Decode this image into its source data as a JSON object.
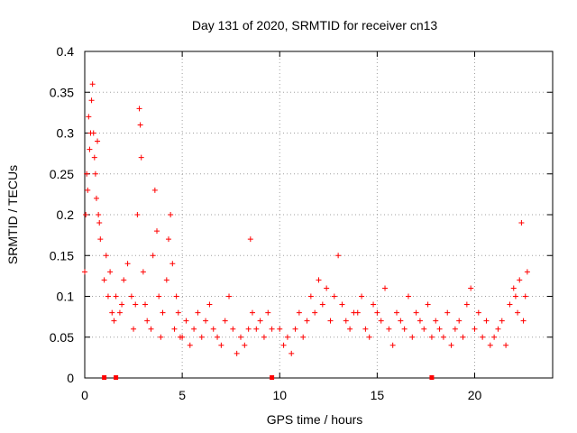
{
  "chart_data": {
    "type": "scatter",
    "title": "Day 131 of 2020, SRMTID for receiver cn13",
    "xlabel": "GPS time / hours",
    "ylabel": "SRMTID / TECUs",
    "xlim": [
      0,
      24
    ],
    "ylim": [
      0,
      0.4
    ],
    "xticks": [
      0,
      5,
      10,
      15,
      20
    ],
    "xtick_labels": [
      "0",
      "5",
      "10",
      "15",
      "20"
    ],
    "yticks": [
      0,
      0.05,
      0.1,
      0.15,
      0.2,
      0.25,
      0.3,
      0.35,
      0.4
    ],
    "ytick_labels": [
      "0",
      "0.05",
      "0.1",
      "0.15",
      "0.2",
      "0.25",
      "0.3",
      "0.35",
      "0.4"
    ],
    "grid": true,
    "marker": "+",
    "color": "#ff0000",
    "series": [
      {
        "name": "SRMTID",
        "x": [
          0.0,
          0.05,
          0.1,
          0.15,
          0.2,
          0.25,
          0.3,
          0.35,
          0.4,
          0.45,
          0.5,
          0.55,
          0.6,
          0.65,
          0.7,
          0.75,
          0.8,
          1.0,
          1.1,
          1.2,
          1.3,
          1.4,
          1.5,
          1.6,
          1.8,
          1.9,
          2.0,
          2.2,
          2.4,
          2.5,
          2.6,
          2.7,
          2.8,
          2.85,
          2.9,
          3.0,
          3.1,
          3.2,
          3.4,
          3.5,
          3.6,
          3.7,
          3.8,
          3.9,
          4.0,
          4.2,
          4.3,
          4.4,
          4.5,
          4.6,
          4.7,
          4.8,
          4.9,
          5.0,
          5.2,
          5.4,
          5.6,
          5.8,
          6.0,
          6.2,
          6.4,
          6.6,
          6.8,
          7.0,
          7.2,
          7.4,
          7.6,
          7.8,
          8.0,
          8.2,
          8.4,
          8.5,
          8.6,
          8.8,
          9.0,
          9.2,
          9.4,
          9.6,
          10.0,
          10.2,
          10.4,
          10.6,
          10.8,
          11.0,
          11.2,
          11.4,
          11.6,
          11.8,
          12.0,
          12.2,
          12.4,
          12.6,
          12.8,
          13.0,
          13.2,
          13.4,
          13.6,
          13.8,
          14.0,
          14.2,
          14.4,
          14.6,
          14.8,
          15.0,
          15.2,
          15.4,
          15.6,
          15.8,
          16.0,
          16.2,
          16.4,
          16.6,
          16.8,
          17.0,
          17.2,
          17.4,
          17.6,
          17.8,
          18.0,
          18.2,
          18.4,
          18.6,
          18.8,
          19.0,
          19.2,
          19.4,
          19.6,
          19.8,
          20.0,
          20.2,
          20.4,
          20.6,
          20.8,
          21.0,
          21.2,
          21.4,
          21.6,
          21.8,
          22.0,
          22.1,
          22.2,
          22.3,
          22.4,
          22.5,
          22.6,
          22.7
        ],
        "y": [
          0.13,
          0.2,
          0.25,
          0.23,
          0.32,
          0.28,
          0.3,
          0.34,
          0.36,
          0.3,
          0.27,
          0.25,
          0.22,
          0.29,
          0.2,
          0.19,
          0.17,
          0.12,
          0.15,
          0.1,
          0.13,
          0.08,
          0.07,
          0.1,
          0.08,
          0.09,
          0.12,
          0.14,
          0.1,
          0.06,
          0.09,
          0.2,
          0.33,
          0.31,
          0.27,
          0.13,
          0.09,
          0.07,
          0.06,
          0.15,
          0.23,
          0.18,
          0.1,
          0.05,
          0.08,
          0.12,
          0.17,
          0.2,
          0.14,
          0.06,
          0.1,
          0.08,
          0.05,
          0.05,
          0.07,
          0.04,
          0.06,
          0.08,
          0.05,
          0.07,
          0.09,
          0.06,
          0.05,
          0.04,
          0.07,
          0.1,
          0.06,
          0.03,
          0.05,
          0.04,
          0.06,
          0.17,
          0.08,
          0.06,
          0.07,
          0.05,
          0.08,
          0.06,
          0.06,
          0.04,
          0.05,
          0.03,
          0.06,
          0.08,
          0.05,
          0.07,
          0.1,
          0.08,
          0.12,
          0.09,
          0.11,
          0.07,
          0.1,
          0.15,
          0.09,
          0.07,
          0.06,
          0.08,
          0.08,
          0.1,
          0.06,
          0.05,
          0.09,
          0.08,
          0.07,
          0.11,
          0.06,
          0.04,
          0.08,
          0.07,
          0.06,
          0.1,
          0.05,
          0.08,
          0.07,
          0.06,
          0.09,
          0.05,
          0.07,
          0.06,
          0.05,
          0.08,
          0.04,
          0.06,
          0.07,
          0.05,
          0.09,
          0.11,
          0.06,
          0.08,
          0.05,
          0.07,
          0.04,
          0.05,
          0.06,
          0.07,
          0.04,
          0.09,
          0.11,
          0.1,
          0.08,
          0.12,
          0.19,
          0.07,
          0.1,
          0.13
        ]
      }
    ],
    "gap_markers_x": [
      1.0,
      1.6,
      9.6,
      17.8
    ]
  }
}
